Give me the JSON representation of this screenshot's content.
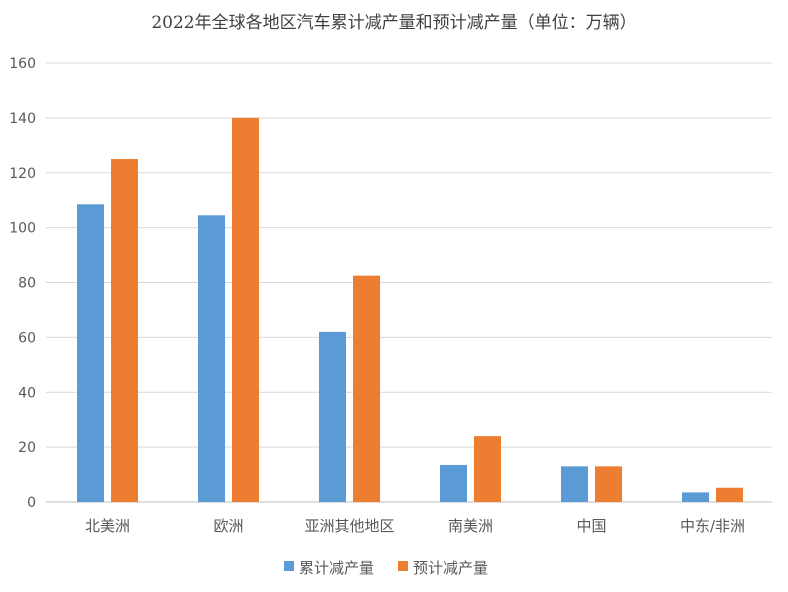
{
  "chart_data": {
    "type": "bar",
    "title": "2022年全球各地区汽车累计减产量和预计减产量（单位：万辆）",
    "categories": [
      "北美洲",
      "欧洲",
      "亚洲其他地区",
      "南美洲",
      "中国",
      "中东/非洲"
    ],
    "series": [
      {
        "name": "累计减产量",
        "color": "#5B9BD5",
        "values": [
          108.5,
          104.5,
          62,
          13.5,
          13,
          3.5
        ]
      },
      {
        "name": "预计减产量",
        "color": "#ED7D31",
        "values": [
          125,
          140,
          82.5,
          24,
          13,
          5.2
        ]
      }
    ],
    "ylim": [
      0,
      160
    ],
    "yticks": [
      0,
      20,
      40,
      60,
      80,
      100,
      120,
      140,
      160
    ],
    "grid": true,
    "legend": "bottom"
  }
}
